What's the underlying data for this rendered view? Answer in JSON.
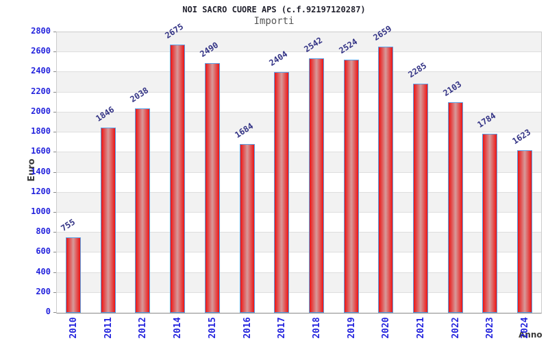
{
  "chart_data": {
    "type": "bar",
    "title": "NOI SACRO CUORE APS (c.f.92197120287)",
    "subtitle": "Importi",
    "xlabel": "Anno",
    "ylabel": "Euro",
    "categories": [
      "2010",
      "2011",
      "2012",
      "2014",
      "2015",
      "2016",
      "2017",
      "2018",
      "2019",
      "2020",
      "2021",
      "2022",
      "2023",
      "2024"
    ],
    "values": [
      755,
      1846,
      2038,
      2675,
      2490,
      1684,
      2404,
      2542,
      2524,
      2659,
      2285,
      2103,
      1784,
      1623
    ],
    "ylim": [
      0,
      2800
    ],
    "ytick_step": 200,
    "yticks": [
      0,
      200,
      400,
      600,
      800,
      1000,
      1200,
      1400,
      1600,
      1800,
      2000,
      2200,
      2400,
      2600,
      2800
    ],
    "bar_value_labels_shown": true,
    "legend_position": "none",
    "grid": "horizontal gridlines with alternating 200-unit background bands"
  },
  "colors": {
    "title": "#22222e",
    "subtitle": "#555555",
    "axis_title": "#3a3a3a",
    "tick_label": "#2323dd",
    "value_label": "#333385",
    "bar_edge": "#ec1414",
    "bar_center": "#d79a9a",
    "bar_border": "#58a0e6",
    "band": "#f2f2f2",
    "grid_line": "#dedede",
    "plot_border": "#cccccc",
    "axis_line": "#888888"
  }
}
